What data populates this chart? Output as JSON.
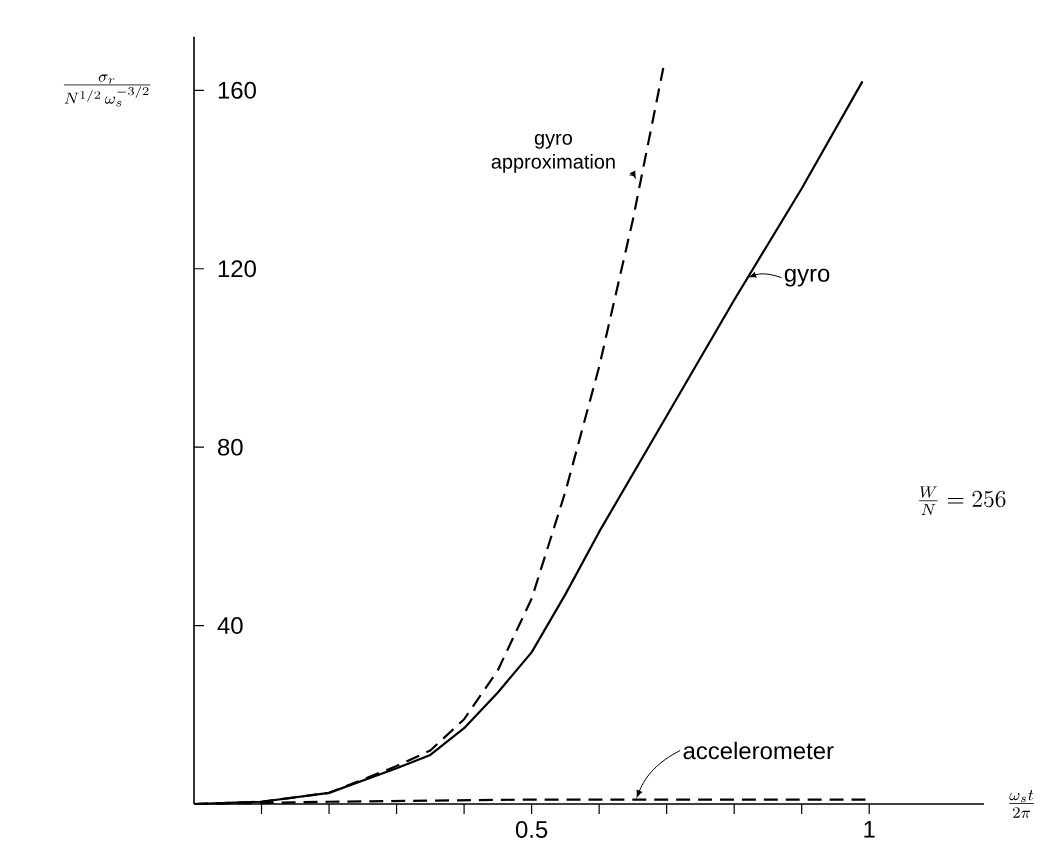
{
  "chart_data": {
    "type": "line",
    "xlabel": "\\frac{\\omega_s t}{2\\pi}",
    "ylabel": "\\frac{\\sigma_r}{N^{1/2}\\,\\omega_s^{-3/2}}",
    "annotations": [
      "\\frac{W}{N}=256"
    ],
    "xlim": [
      0,
      1.17
    ],
    "ylim": [
      0,
      172
    ],
    "xticks": [
      {
        "value": 0.1,
        "label": null
      },
      {
        "value": 0.2,
        "label": null
      },
      {
        "value": 0.3,
        "label": null
      },
      {
        "value": 0.4,
        "label": null
      },
      {
        "value": 0.5,
        "label": "0.5"
      },
      {
        "value": 0.6,
        "label": null
      },
      {
        "value": 0.7,
        "label": null
      },
      {
        "value": 0.8,
        "label": null
      },
      {
        "value": 0.9,
        "label": null
      },
      {
        "value": 1,
        "label": "1"
      }
    ],
    "yticks": [
      40,
      80,
      120,
      160
    ],
    "grid": false,
    "marker": "none",
    "series": [
      {
        "name": "gyro approximation",
        "color": "#000000",
        "line_style": "dashed",
        "x": [
          0,
          0.1,
          0.2,
          0.3,
          0.35,
          0.4,
          0.45,
          0.5,
          0.55,
          0.6,
          0.65,
          0.695
        ],
        "values": [
          0,
          0.5,
          2.5,
          8.5,
          12,
          19,
          30,
          46,
          70,
          98,
          131,
          165
        ]
      },
      {
        "name": "gyro",
        "color": "#000000",
        "line_style": "solid",
        "x": [
          0,
          0.1,
          0.2,
          0.3,
          0.35,
          0.4,
          0.45,
          0.5,
          0.55,
          0.6,
          0.7,
          0.8,
          0.9,
          0.99
        ],
        "values": [
          0,
          0.5,
          2.5,
          8,
          11,
          17,
          25,
          34,
          47,
          61,
          87,
          113,
          138,
          162
        ]
      },
      {
        "name": "accelerometer",
        "color": "#000000",
        "line_style": "dashed",
        "x": [
          0,
          0.2,
          0.5,
          1.0
        ],
        "values": [
          0,
          0.5,
          1,
          1
        ]
      }
    ]
  }
}
